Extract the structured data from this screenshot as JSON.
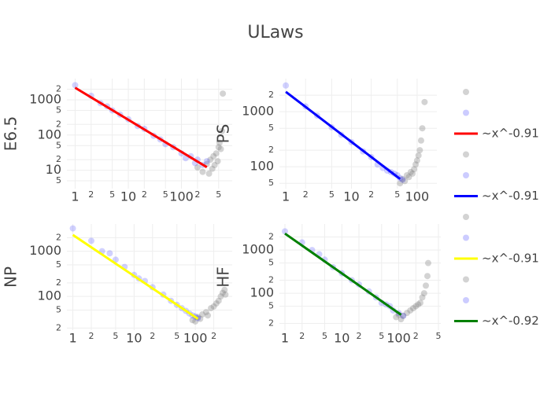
{
  "title": "ULaws",
  "chart_data": [
    {
      "type": "scatter",
      "y_label": "E6.5",
      "log_x": true,
      "log_y": true,
      "grid": true,
      "xlim": [
        0.7,
        900
      ],
      "ylim": [
        3,
        4000
      ],
      "xticks": [
        1,
        2,
        5,
        10,
        {
          "value": 20,
          "label": "2"
        },
        {
          "value": 50,
          "label": "5"
        },
        100,
        {
          "value": 200,
          "label": "2"
        },
        {
          "value": 500,
          "label": "5"
        }
      ],
      "yticks": [
        5,
        10,
        {
          "value": 20,
          "label": "2"
        },
        {
          "value": 50,
          "label": "5"
        },
        100,
        {
          "value": 200,
          "label": "2"
        },
        {
          "value": 500,
          "label": "5"
        },
        1000,
        {
          "value": 2000,
          "label": "2"
        }
      ],
      "series": [
        {
          "mode": "markers",
          "color": "#808080",
          "x": [
            200,
            250,
            300,
            330,
            350,
            380,
            400,
            420,
            450,
            480,
            500,
            520,
            550,
            580,
            600
          ],
          "values": [
            12,
            9,
            15,
            8,
            20,
            11,
            25,
            14,
            30,
            18,
            45,
            60,
            40,
            130,
            1500
          ]
        },
        {
          "mode": "markers",
          "color": "#0000ff",
          "x": [
            1,
            2,
            3,
            4,
            5,
            7,
            10,
            15,
            20,
            30,
            40,
            50,
            70,
            100,
            120,
            150,
            180,
            200,
            250,
            300
          ],
          "values": [
            2600,
            1300,
            800,
            650,
            500,
            380,
            280,
            180,
            150,
            95,
            75,
            55,
            45,
            30,
            22,
            25,
            16,
            20,
            14,
            18
          ]
        },
        {
          "mode": "lines",
          "name": "~x^-0.91",
          "color": "#ff0000",
          "x": [
            1,
            300
          ],
          "values": [
            2200,
            12.2
          ]
        }
      ]
    },
    {
      "type": "scatter",
      "y_label": "PS",
      "log_x": true,
      "log_y": true,
      "grid": true,
      "xlim": [
        0.8,
        200
      ],
      "ylim": [
        40,
        4000
      ],
      "xticks": [
        1,
        2,
        5,
        10,
        {
          "value": 20,
          "label": "2"
        },
        {
          "value": 50,
          "label": "5"
        },
        100
      ],
      "yticks": [
        {
          "value": 50,
          "label": "5"
        },
        100,
        {
          "value": 200,
          "label": "2"
        },
        {
          "value": 500,
          "label": "5"
        },
        1000,
        {
          "value": 2000,
          "label": "2"
        }
      ],
      "series": [
        {
          "mode": "markers",
          "color": "#808080",
          "x": [
            55,
            60,
            65,
            70,
            75,
            80,
            85,
            90,
            95,
            100,
            105,
            110,
            115,
            120,
            130
          ],
          "values": [
            50,
            60,
            55,
            70,
            65,
            80,
            75,
            90,
            110,
            130,
            160,
            200,
            300,
            500,
            1500
          ]
        },
        {
          "mode": "markers",
          "color": "#0000ff",
          "x": [
            1,
            2,
            3,
            5,
            7,
            10,
            15,
            20,
            25,
            30,
            35,
            40,
            45,
            50,
            55,
            60
          ],
          "values": [
            3000,
            1250,
            850,
            520,
            380,
            280,
            190,
            150,
            110,
            95,
            85,
            80,
            75,
            70,
            62,
            58
          ]
        },
        {
          "mode": "lines",
          "name": "~x^-0.91",
          "color": "#0000ff",
          "x": [
            1,
            55
          ],
          "values": [
            2300,
            60
          ]
        }
      ]
    },
    {
      "type": "scatter",
      "y_label": "NP",
      "log_x": true,
      "log_y": true,
      "grid": true,
      "xlim": [
        0.8,
        400
      ],
      "ylim": [
        18,
        4000
      ],
      "xticks": [
        1,
        2,
        5,
        10,
        {
          "value": 20,
          "label": "2"
        },
        {
          "value": 50,
          "label": "5"
        },
        100,
        {
          "value": 200,
          "label": "2"
        }
      ],
      "yticks": [
        {
          "value": 20,
          "label": "2"
        },
        {
          "value": 50,
          "label": "5"
        },
        100,
        {
          "value": 200,
          "label": "2"
        },
        {
          "value": 500,
          "label": "5"
        },
        1000,
        {
          "value": 2000,
          "label": "2"
        }
      ],
      "series": [
        {
          "mode": "markers",
          "color": "#808080",
          "x": [
            90,
            100,
            110,
            120,
            130,
            150,
            160,
            180,
            200,
            220,
            240,
            260,
            280,
            300,
            310
          ],
          "values": [
            30,
            28,
            35,
            32,
            40,
            45,
            38,
            55,
            60,
            70,
            80,
            100,
            120,
            140,
            110
          ]
        },
        {
          "mode": "markers",
          "color": "#0000ff",
          "x": [
            1,
            2,
            3,
            4,
            5,
            7,
            10,
            12,
            15,
            20,
            30,
            40,
            50,
            60,
            70,
            80,
            90,
            100,
            110
          ],
          "values": [
            3200,
            1700,
            1000,
            900,
            650,
            450,
            300,
            250,
            220,
            160,
            110,
            80,
            65,
            55,
            48,
            42,
            38,
            36,
            33
          ]
        },
        {
          "mode": "lines",
          "name": "~x^-0.91",
          "color": "#ffff00",
          "x": [
            1,
            110
          ],
          "values": [
            2300,
            32
          ]
        }
      ]
    },
    {
      "type": "scatter",
      "y_label": "HF",
      "log_x": true,
      "log_y": true,
      "grid": true,
      "xlim": [
        0.8,
        550
      ],
      "ylim": [
        14,
        4000
      ],
      "xticks": [
        1,
        2,
        5,
        10,
        {
          "value": 20,
          "label": "2"
        },
        {
          "value": 50,
          "label": "5"
        },
        100,
        {
          "value": 200,
          "label": "2"
        },
        {
          "value": 500,
          "label": "5"
        }
      ],
      "yticks": [
        {
          "value": 20,
          "label": "2"
        },
        {
          "value": 50,
          "label": "5"
        },
        100,
        {
          "value": 200,
          "label": "2"
        },
        {
          "value": 500,
          "label": "5"
        },
        1000,
        {
          "value": 2000,
          "label": "2"
        }
      ],
      "series": [
        {
          "mode": "markers",
          "color": "#808080",
          "x": [
            90,
            100,
            110,
            120,
            140,
            160,
            180,
            200,
            220,
            240,
            260,
            280,
            300,
            320,
            330
          ],
          "values": [
            28,
            32,
            25,
            30,
            35,
            40,
            45,
            50,
            55,
            60,
            80,
            100,
            150,
            250,
            500
          ]
        },
        {
          "mode": "markers",
          "color": "#0000ff",
          "x": [
            1,
            2,
            3,
            4,
            5,
            7,
            10,
            15,
            20,
            30,
            40,
            50,
            60,
            70,
            80,
            100,
            120
          ],
          "values": [
            2700,
            1500,
            1000,
            800,
            600,
            400,
            290,
            200,
            160,
            110,
            80,
            60,
            55,
            50,
            40,
            35,
            30
          ]
        },
        {
          "mode": "lines",
          "name": "~x^-0.92",
          "color": "#008000",
          "x": [
            1,
            110
          ],
          "values": [
            2400,
            31.7
          ]
        }
      ]
    }
  ]
}
